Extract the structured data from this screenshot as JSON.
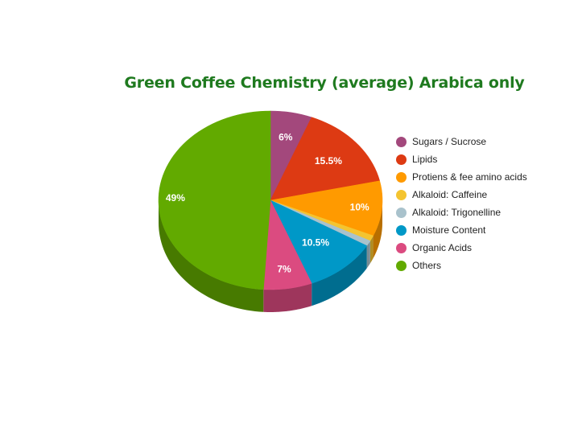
{
  "chart_data": {
    "type": "pie",
    "title": "Green Coffee Chemistry (average) Arabica only",
    "categories": [
      "Sugars / Sucrose",
      "Lipids",
      "Protiens & fee amino acids",
      "Alkaloid: Caffeine",
      "Alkaloid: Trigonelline",
      "Moisture Content",
      "Organic Acids",
      "Others"
    ],
    "values": [
      6,
      15.5,
      10,
      1,
      1,
      10.5,
      7,
      49
    ],
    "data_labels": [
      "6%",
      "15.5%",
      "10%",
      "",
      "",
      "10.5%",
      "7%",
      "49%"
    ],
    "colors": [
      "#a3487c",
      "#dd3a13",
      "#ff9a00",
      "#f4c430",
      "#a9c2cc",
      "#0098c7",
      "#db4b80",
      "#62aa00"
    ],
    "legend_position": "right",
    "style": "3d"
  }
}
